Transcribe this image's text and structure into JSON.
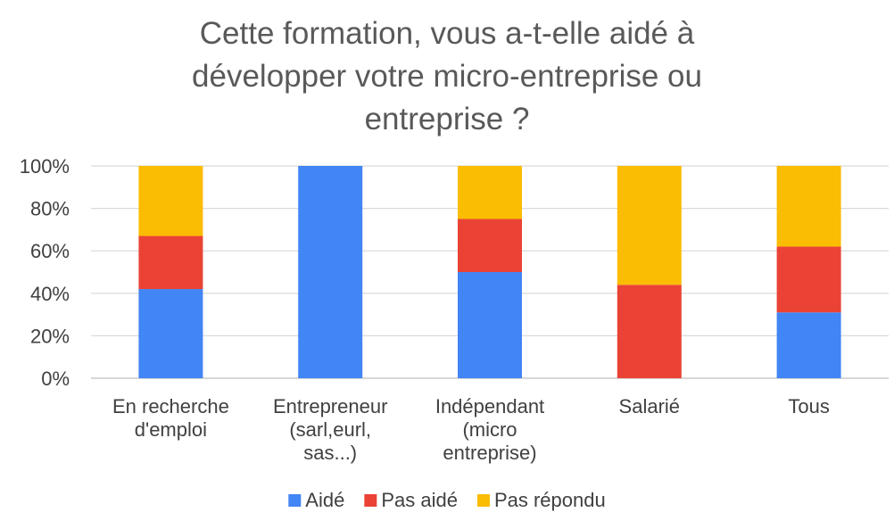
{
  "chart_data": {
    "type": "bar",
    "stacked": true,
    "title_lines": [
      "Cette formation, vous a-t-elle aidé à",
      "développer votre micro-entreprise ou",
      "entreprise ?"
    ],
    "categories": [
      [
        "En recherche",
        "d'emploi"
      ],
      [
        "Entrepreneur",
        "(sarl,eurl,",
        "sas...)"
      ],
      [
        "Indépendant",
        "(micro",
        "entreprise)"
      ],
      [
        "Salarié"
      ],
      [
        "Tous"
      ]
    ],
    "series": [
      {
        "name": "Aidé",
        "color": "#4285F4",
        "values": [
          42,
          100,
          50,
          0,
          31
        ]
      },
      {
        "name": "Pas aidé",
        "color": "#EA4335",
        "values": [
          25,
          0,
          25,
          44,
          31
        ]
      },
      {
        "name": "Pas répondu",
        "color": "#FBBC04",
        "values": [
          33,
          0,
          25,
          56,
          38
        ]
      }
    ],
    "y_ticks": [
      "0%",
      "20%",
      "40%",
      "60%",
      "80%",
      "100%"
    ],
    "ylim": [
      0,
      100
    ],
    "grid": true,
    "legend_position": "bottom"
  }
}
